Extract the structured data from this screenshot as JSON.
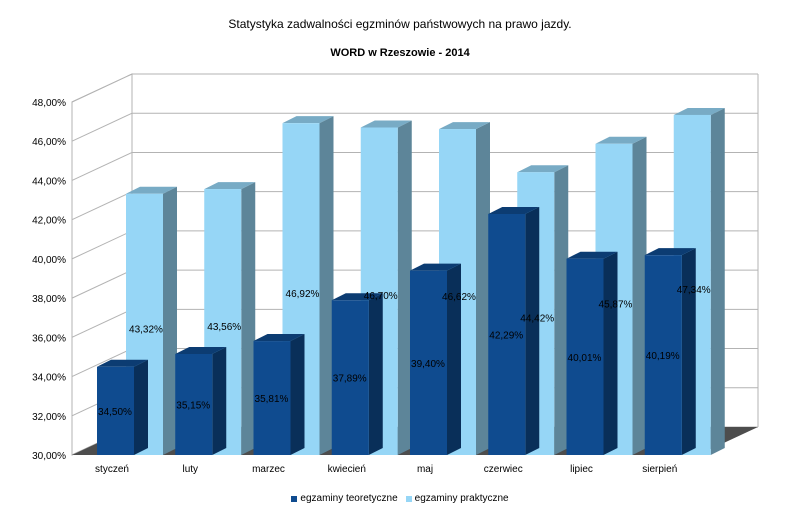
{
  "chart_data": {
    "type": "bar",
    "title": "Statystyka zadwalności egzminów państwowych na prawo jazdy.",
    "subtitle": "WORD w Rzeszowie - 2014",
    "categories": [
      "styczeń",
      "luty",
      "marzec",
      "kwiecień",
      "maj",
      "czerwiec",
      "lipiec",
      "sierpień"
    ],
    "series": [
      {
        "name": "egzaminy teoretyczne",
        "color": "#0f4b8f",
        "values": [
          34.5,
          35.15,
          35.81,
          37.89,
          39.4,
          42.29,
          40.01,
          40.19
        ],
        "labels": [
          "34,50%",
          "35,15%",
          "35,81%",
          "37,89%",
          "39,40%",
          "42,29%",
          "40,01%",
          "40,19%"
        ]
      },
      {
        "name": "egzaminy praktyczne",
        "color": "#96d6f6",
        "values": [
          43.32,
          43.56,
          46.92,
          46.7,
          46.62,
          44.42,
          45.87,
          47.34
        ],
        "labels": [
          "43,32%",
          "43,56%",
          "46,92%",
          "46,70%",
          "46,62%",
          "44,42%",
          "45,87%",
          "47,34%"
        ]
      }
    ],
    "ylim": [
      30,
      48
    ],
    "yticks": [
      "30,00%",
      "32,00%",
      "34,00%",
      "36,00%",
      "38,00%",
      "40,00%",
      "42,00%",
      "44,00%",
      "46,00%",
      "48,00%"
    ],
    "grid": true,
    "legend_position": "bottom",
    "style": "3d"
  }
}
